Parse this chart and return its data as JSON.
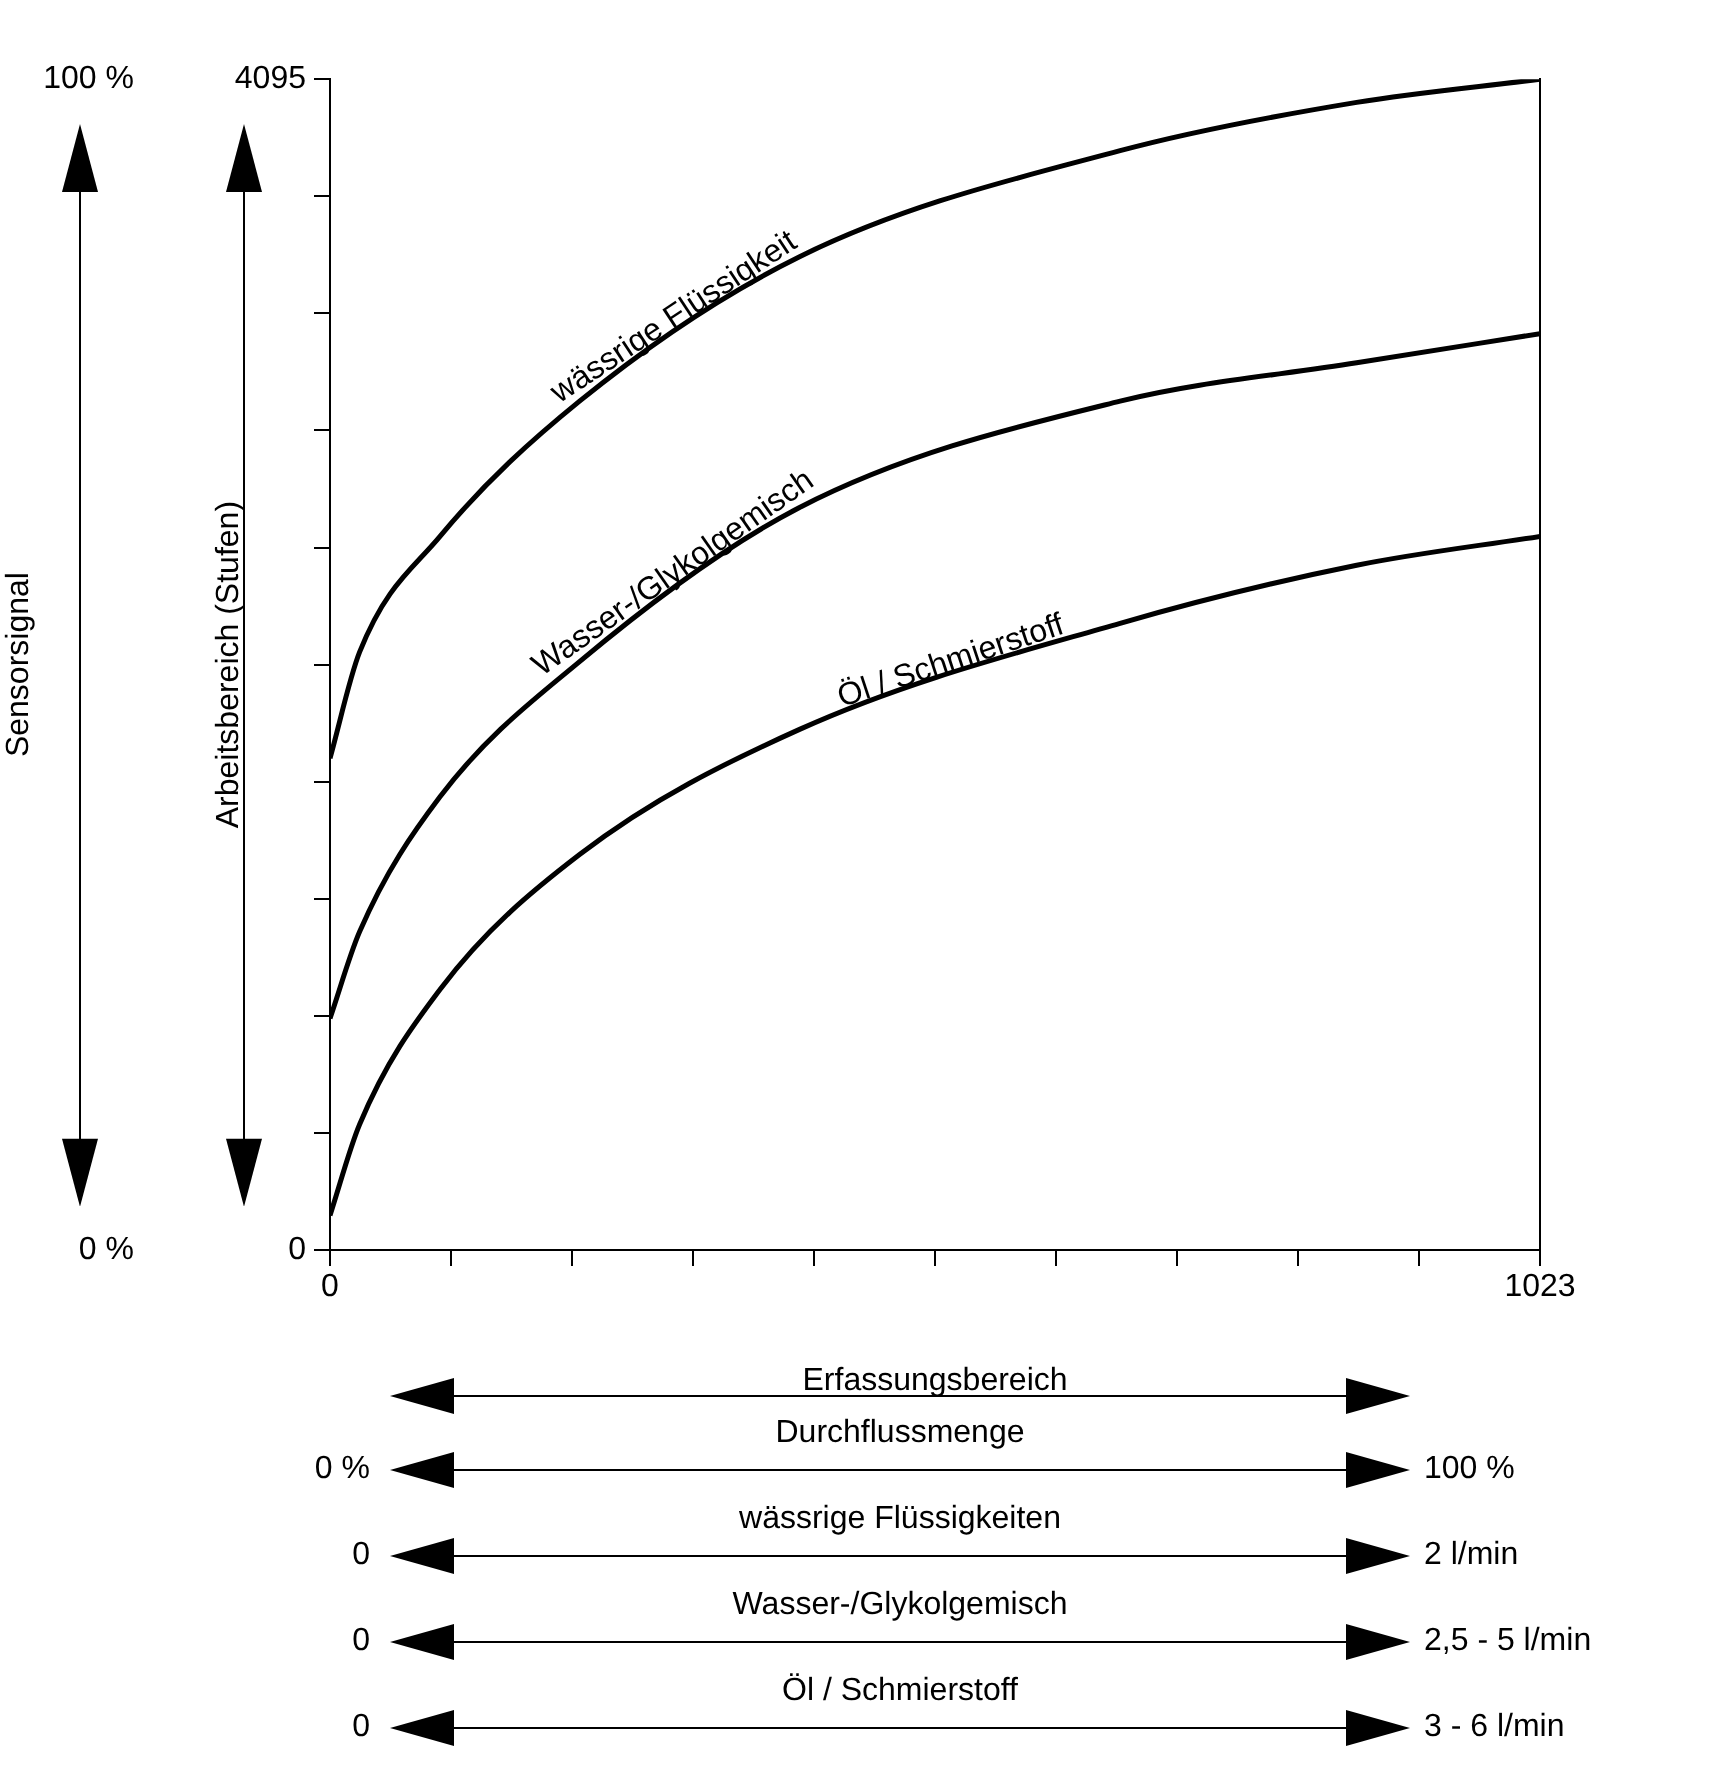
{
  "chart_data": {
    "type": "line",
    "xlabel": "Erfassungsbereich",
    "ylabel": "Arbeitsbereich (Stufen)",
    "y2label": "Sensorsignal",
    "xlim": [
      0,
      1023
    ],
    "xticks": [
      {
        "value": 0,
        "label": "0"
      },
      {
        "value": 102.3,
        "label": null
      },
      {
        "value": 204.6,
        "label": null
      },
      {
        "value": 306.9,
        "label": null
      },
      {
        "value": 409.2,
        "label": null
      },
      {
        "value": 511.5,
        "label": null
      },
      {
        "value": 613.8,
        "label": null
      },
      {
        "value": 716.1,
        "label": null
      },
      {
        "value": 818.4,
        "label": null
      },
      {
        "value": 920.7,
        "label": null
      },
      {
        "value": 1023,
        "label": "1023"
      }
    ],
    "ylim": [
      0,
      4095
    ],
    "yticks": [
      {
        "value": 0,
        "label": "0"
      },
      {
        "value": 409.5,
        "label": null
      },
      {
        "value": 819,
        "label": null
      },
      {
        "value": 1228.5,
        "label": null
      },
      {
        "value": 1638,
        "label": null
      },
      {
        "value": 2047.5,
        "label": null
      },
      {
        "value": 2457,
        "label": null
      },
      {
        "value": 2866.5,
        "label": null
      },
      {
        "value": 3276,
        "label": null
      },
      {
        "value": 3685.5,
        "label": null
      },
      {
        "value": 4095,
        "label": "4095"
      }
    ],
    "y2lim": [
      0,
      100
    ],
    "y2ticks": [
      {
        "value": 0,
        "label": "0 %"
      },
      {
        "value": 100,
        "label": "100 %"
      }
    ],
    "x": [
      0,
      25,
      93,
      211,
      397,
      668,
      868,
      1023
    ],
    "series": [
      {
        "name": "wässrige Flüssigkeit",
        "color": "#000000",
        "values": [
          1720,
          2091,
          2496,
          2969,
          3474,
          3845,
          4014,
          4095
        ]
      },
      {
        "name": "Wasser-/Glykolgemisch",
        "color": "#000000",
        "values": [
          810,
          1113,
          1585,
          2058,
          2597,
          2969,
          3103,
          3205
        ]
      },
      {
        "name": "Öl / Schmierstoff",
        "color": "#000000",
        "values": [
          121,
          439,
          911,
          1383,
          1821,
          2192,
          2395,
          2496
        ]
      }
    ],
    "annotations": [
      "0 %",
      "Durchflussmenge",
      "100 %",
      "0",
      "wässrige Flüssigkeiten",
      "2 l/min",
      "0",
      "Wasser-/Glykolgemisch",
      "2,5 - 5 l/min",
      "0",
      "Öl / Schmierstoff",
      "3 - 6 l/min"
    ],
    "grid": false,
    "legend": false,
    "marker": "none",
    "line_style": "solid"
  }
}
